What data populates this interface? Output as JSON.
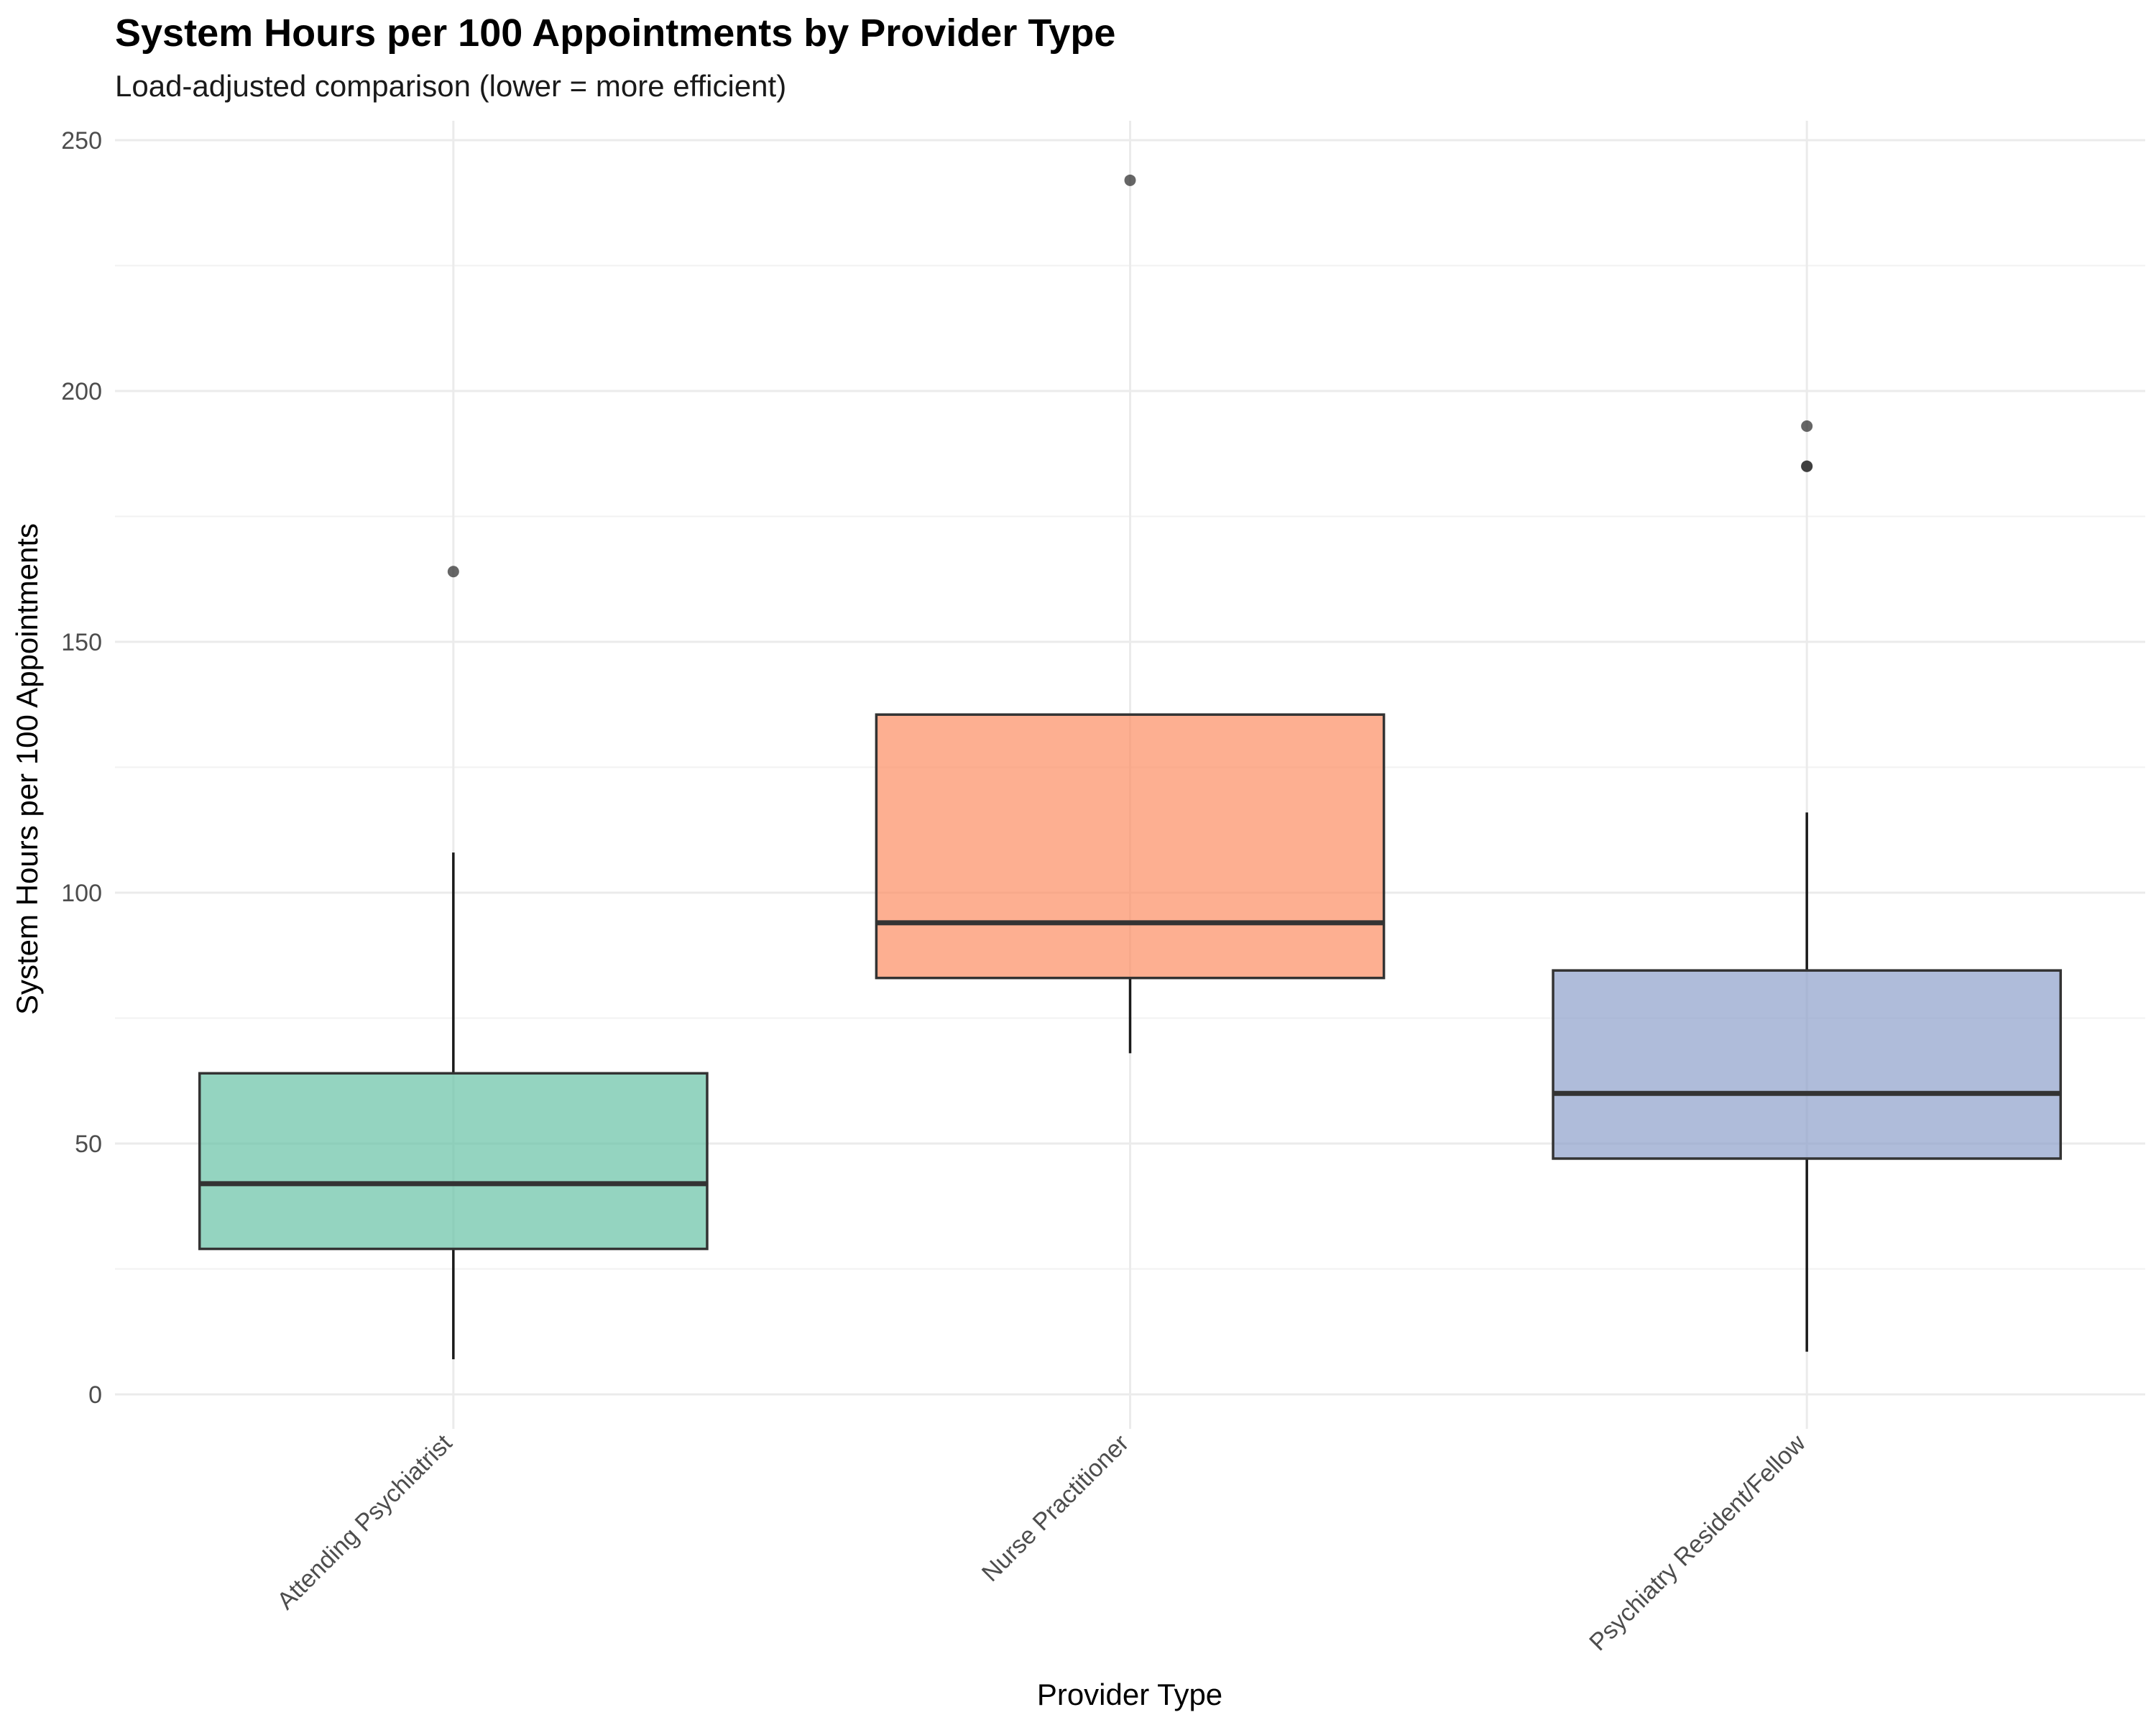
{
  "chart_data": {
    "type": "box",
    "title": "System Hours per 100 Appointments by Provider Type",
    "subtitle": "Load-adjusted comparison (lower = more efficient)",
    "xlabel": "Provider Type",
    "ylabel": "System Hours per 100 Appointments",
    "ylim": [
      -4,
      254
    ],
    "yticks": [
      0,
      50,
      100,
      150,
      200,
      250
    ],
    "grid": true,
    "legend": "none",
    "categories": [
      "Attending Psychiatrist",
      "Nurse Practitioner",
      "Psychiatry Resident/Fellow"
    ],
    "series": [
      {
        "category": "Attending Psychiatrist",
        "min": 7,
        "q1": 29,
        "median": 42,
        "q3": 64,
        "max": 108,
        "outliers": [
          164
        ],
        "color": "#66c2a5"
      },
      {
        "category": "Nurse Practitioner",
        "min": 68,
        "q1": 83,
        "median": 94,
        "q3": 135.5,
        "max": 135.5,
        "outliers": [
          242
        ],
        "color": "#fc8d62"
      },
      {
        "category": "Psychiatry Resident/Fellow",
        "min": 8.5,
        "q1": 47,
        "median": 60,
        "q3": 84.5,
        "max": 116,
        "outliers": [
          185,
          185,
          193
        ],
        "color": "#8da0cb"
      }
    ]
  }
}
